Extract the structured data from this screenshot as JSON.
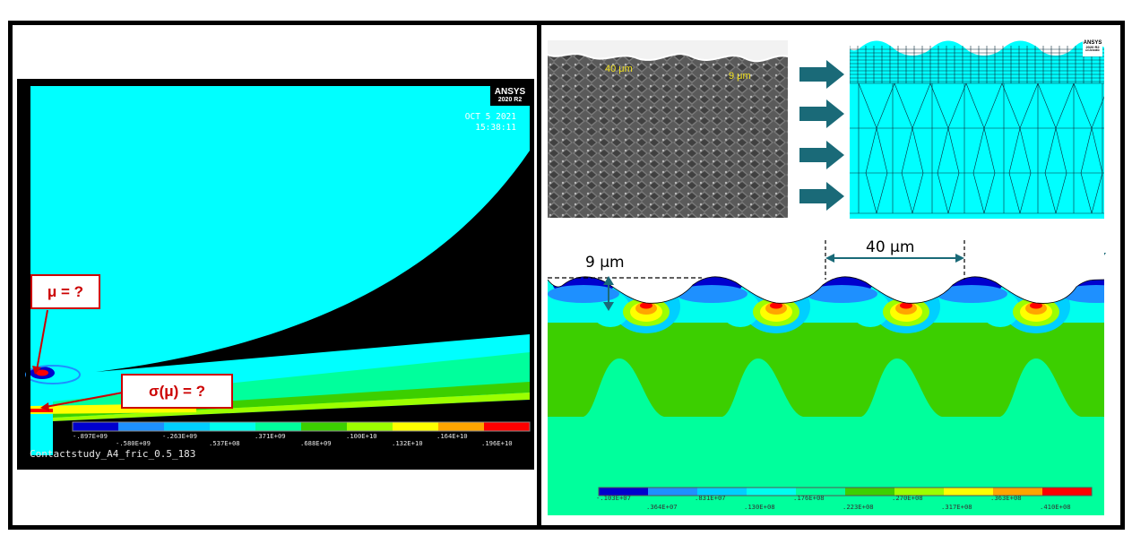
{
  "left_panel": {
    "logo": {
      "brand": "ANSYS",
      "version": "2020 R2"
    },
    "date": "OCT  5 2021",
    "time": "15:38:11",
    "legend_top_labels": [
      ".897E+09",
      ".263E+09",
      ".371E+09",
      ".100E+10",
      ".164E+10"
    ],
    "legend_top_prefix": [
      "-",
      "-",
      "",
      "",
      ""
    ],
    "legend_bottom_labels": [
      ".580E+09",
      ".537E+08",
      ".688E+09",
      ".132E+10",
      ".196E+10"
    ],
    "legend_bottom_prefix": [
      "-",
      "",
      "",
      "",
      ""
    ],
    "caption": "Contactstudy_A4_fric_0.5_183",
    "callout_mu": "μ = ?",
    "callout_sigma": "σ(μ) = ?"
  },
  "sem_image": {
    "label_width": "40 μm",
    "label_depth": "9 μm"
  },
  "mesh_panel": {
    "logo": {
      "brand": "ANSYS",
      "version": "2020 R2",
      "edition": "ACADEMIC"
    }
  },
  "contour_panel": {
    "dim_width": "40 μm",
    "dim_depth": "9 μm",
    "legend_top_labels": [
      "-.103E+07",
      ".831E+07",
      ".176E+08",
      ".270E+08",
      ".363E+08"
    ],
    "legend_bottom_labels": [
      ".364E+07",
      ".130E+08",
      ".223E+08",
      ".317E+08",
      ".410E+08"
    ]
  },
  "colors": {
    "contour_scale": [
      "#0000cd",
      "#1e90ff",
      "#00cfff",
      "#00ffee",
      "#00ff9c",
      "#3ccf00",
      "#9cff00",
      "#ffff00",
      "#ffa500",
      "#ff0000"
    ],
    "arrow": "#1a6a78",
    "callout": "#cc0000",
    "dim_arrow": "#1a6a78"
  }
}
